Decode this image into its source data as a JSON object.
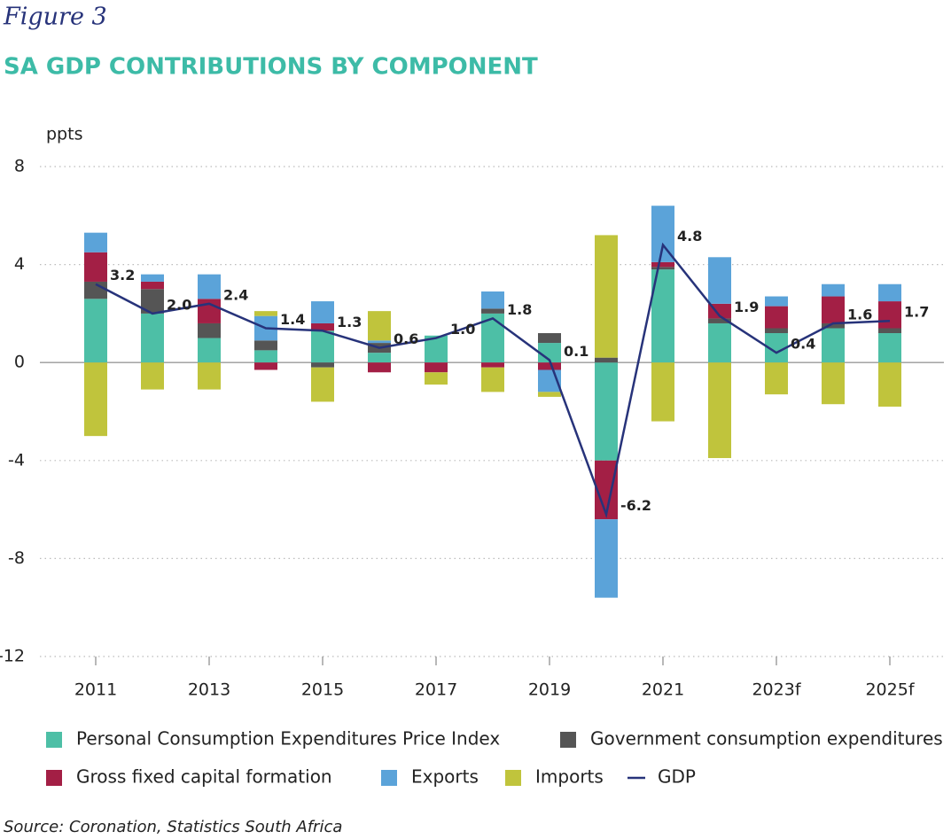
{
  "chart_data": {
    "type": "bar",
    "figure_label": "Figure 3",
    "title": "SA GDP CONTRIBUTIONS BY COMPONENT",
    "y_label": "ppts",
    "source": "Source: Coronation, Statistics South Africa",
    "categories": [
      "2011",
      null,
      "2013",
      null,
      "2015",
      null,
      "2017",
      null,
      "2019",
      null,
      "2021",
      null,
      "2023f",
      null,
      "2025f"
    ],
    "ylim": [
      -12,
      8
    ],
    "yticks": [
      8,
      4,
      0,
      -4,
      -8,
      -12
    ],
    "grid": true,
    "series": [
      {
        "name": "Personal Consumption Expenditures Price Index",
        "color": "#4dbfa6",
        "values": [
          2.6,
          2.0,
          1.0,
          0.5,
          1.3,
          0.4,
          1.1,
          2.0,
          0.8,
          -4.0,
          3.8,
          1.6,
          1.2,
          1.4,
          1.2
        ]
      },
      {
        "name": "Government consumption expenditures",
        "color": "#555555",
        "values": [
          0.7,
          1.0,
          0.6,
          0.4,
          -0.2,
          0.4,
          0.0,
          0.2,
          0.4,
          0.2,
          0.1,
          0.2,
          0.2,
          0.2,
          0.2
        ]
      },
      {
        "name": "Gross fixed capital formation",
        "color": "#a31f45",
        "values": [
          1.2,
          0.3,
          1.0,
          -0.3,
          0.3,
          -0.4,
          -0.4,
          -0.2,
          -0.3,
          -2.4,
          0.2,
          0.6,
          0.9,
          1.1,
          1.1
        ]
      },
      {
        "name": "Exports",
        "color": "#5ba3d9",
        "values": [
          0.8,
          0.3,
          1.0,
          1.0,
          0.9,
          0.1,
          0.0,
          0.7,
          -0.9,
          -3.2,
          2.3,
          1.9,
          0.4,
          0.5,
          0.7
        ]
      },
      {
        "name": "Imports",
        "color": "#c0c43c",
        "values": [
          -3.0,
          -1.1,
          -1.1,
          0.2,
          -1.4,
          1.2,
          -0.5,
          -1.0,
          -0.2,
          5.0,
          -2.4,
          -3.9,
          -1.3,
          -1.7,
          -1.8
        ]
      },
      {
        "name": "GDP",
        "color": "#27337a",
        "type": "line",
        "values": [
          3.2,
          2.0,
          2.4,
          1.4,
          1.3,
          0.6,
          1.0,
          1.8,
          0.1,
          -6.2,
          4.8,
          1.9,
          0.4,
          1.6,
          1.7
        ],
        "value_labels": [
          "3.2",
          "2.0",
          "2.4",
          "1.4",
          "1.3",
          "0.6",
          "1.0",
          "1.8",
          "0.1",
          "-6.2",
          "4.8",
          "1.9",
          "0.4",
          "1.6",
          "1.7"
        ]
      }
    ]
  }
}
